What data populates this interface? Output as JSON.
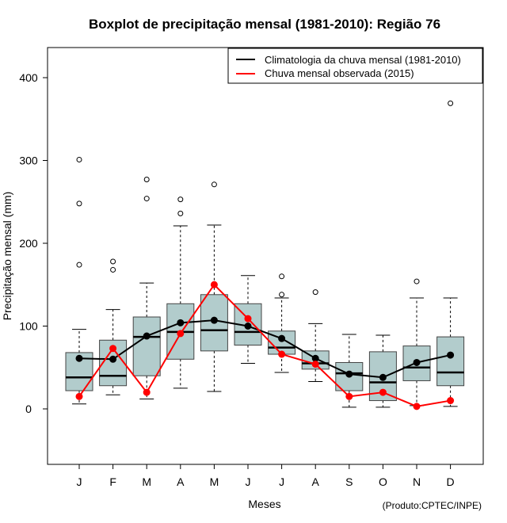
{
  "chart_data": {
    "type": "boxplot",
    "title": "Boxplot de precipitação mensal (1981-2010): Região 76",
    "xlabel": "Meses",
    "ylabel": "Precipitação mensal (mm)",
    "ylim": [
      -60,
      420
    ],
    "yticks": [
      0,
      100,
      200,
      300,
      400
    ],
    "categories": [
      "J",
      "F",
      "M",
      "A",
      "M",
      "J",
      "J",
      "A",
      "S",
      "O",
      "N",
      "D"
    ],
    "boxes": [
      {
        "min": 6,
        "q1": 22,
        "median": 38,
        "q3": 68,
        "max": 96,
        "outliers": [
          174,
          248,
          301
        ]
      },
      {
        "min": 17,
        "q1": 28,
        "median": 40,
        "q3": 83,
        "max": 120,
        "outliers": [
          168,
          178
        ]
      },
      {
        "min": 12,
        "q1": 40,
        "median": 87,
        "q3": 111,
        "max": 152,
        "outliers": [
          254,
          277
        ]
      },
      {
        "min": 25,
        "q1": 60,
        "median": 93,
        "q3": 127,
        "max": 221,
        "outliers": [
          236,
          253
        ]
      },
      {
        "min": 21,
        "q1": 70,
        "median": 95,
        "q3": 138,
        "max": 222,
        "outliers": [
          271
        ]
      },
      {
        "min": 55,
        "q1": 77,
        "median": 93,
        "q3": 127,
        "max": 161,
        "outliers": []
      },
      {
        "min": 44,
        "q1": 66,
        "median": 74,
        "q3": 94,
        "max": 134,
        "outliers": [
          138,
          160
        ]
      },
      {
        "min": 33,
        "q1": 48,
        "median": 55,
        "q3": 70,
        "max": 103,
        "outliers": [
          141
        ]
      },
      {
        "min": 2,
        "q1": 22,
        "median": 43,
        "q3": 56,
        "max": 90,
        "outliers": []
      },
      {
        "min": 2,
        "q1": 10,
        "median": 32,
        "q3": 69,
        "max": 89,
        "outliers": []
      },
      {
        "min": 4,
        "q1": 34,
        "median": 50,
        "q3": 76,
        "max": 134,
        "outliers": [
          154
        ]
      },
      {
        "min": 3,
        "q1": 28,
        "median": 44,
        "q3": 87,
        "max": 134,
        "outliers": [
          369
        ]
      }
    ],
    "series": [
      {
        "name": "Climatologia da chuva mensal (1981-2010)",
        "color": "#000000",
        "values": [
          61,
          60,
          88,
          104,
          107,
          100,
          85,
          61,
          42,
          38,
          56,
          65
        ]
      },
      {
        "name": "Chuva mensal observada (2015)",
        "color": "#ff0000",
        "values": [
          15,
          73,
          20,
          91,
          150,
          109,
          66,
          54,
          15,
          20,
          3,
          10
        ]
      }
    ],
    "box_fill": "#b2cccc",
    "legend_position": "top-right",
    "credit": "(Produto:CPTEC/INPE)"
  }
}
